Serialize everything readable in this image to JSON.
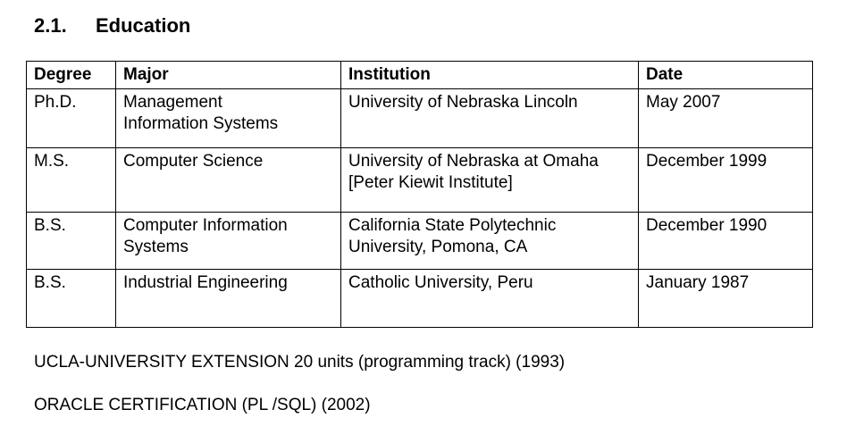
{
  "header": {
    "number": "2.1.",
    "title": "Education"
  },
  "table": {
    "columns": [
      "Degree",
      "Major",
      "Institution",
      "Date"
    ],
    "rows": [
      [
        [
          "Ph.D."
        ],
        [
          "Management",
          "Information Systems"
        ],
        [
          "University of Nebraska Lincoln"
        ],
        [
          "May 2007"
        ]
      ],
      [
        [
          "M.S."
        ],
        [
          "Computer Science"
        ],
        [
          "University of Nebraska at Omaha",
          "[Peter Kiewit Institute]"
        ],
        [
          "December 1999"
        ]
      ],
      [
        [
          "B.S."
        ],
        [
          "Computer Information",
          "Systems"
        ],
        [
          "California State Polytechnic",
          "University, Pomona, CA"
        ],
        [
          "December 1990"
        ]
      ],
      [
        [
          "B.S."
        ],
        [
          "Industrial Engineering"
        ],
        [
          "Catholic University, Peru"
        ],
        [
          "January 1987"
        ]
      ]
    ]
  },
  "notes": [
    "UCLA-UNIVERSITY EXTENSION 20 units (programming track) (1993)",
    "ORACLE CERTIFICATION (PL /SQL) (2002)"
  ]
}
